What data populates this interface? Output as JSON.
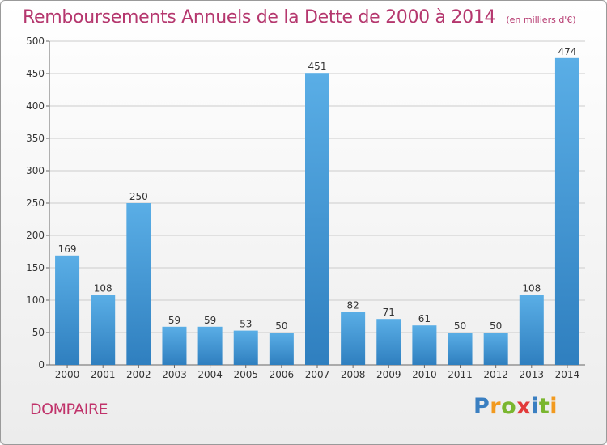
{
  "chart_data": {
    "type": "bar",
    "title": "Remboursements Annuels de la Dette de 2000 à 2014",
    "subtitle": "(en milliers d'€)",
    "categories": [
      "2000",
      "2001",
      "2002",
      "2003",
      "2004",
      "2005",
      "2006",
      "2007",
      "2008",
      "2009",
      "2010",
      "2011",
      "2012",
      "2013",
      "2014"
    ],
    "values": [
      169,
      108,
      250,
      59,
      59,
      53,
      50,
      451,
      82,
      71,
      61,
      50,
      50,
      108,
      474
    ],
    "ylim": [
      0,
      500
    ],
    "yticks": [
      0,
      50,
      100,
      150,
      200,
      250,
      300,
      350,
      400,
      450,
      500
    ],
    "grid": true,
    "legend": "none",
    "colors": {
      "bar_top": "#5aaee6",
      "bar_bottom": "#2f7fbf",
      "grid": "#cccccc",
      "title": "#b5376e"
    }
  },
  "location": "DOMPAIRE",
  "brand": {
    "letters": [
      "P",
      "r",
      "o",
      "x",
      "i",
      "t",
      "i"
    ],
    "colors": [
      "#3a7fc1",
      "#f29a1f",
      "#7ab62f",
      "#e23b3b",
      "#3a7fc1",
      "#7ab62f",
      "#f29a1f"
    ]
  }
}
